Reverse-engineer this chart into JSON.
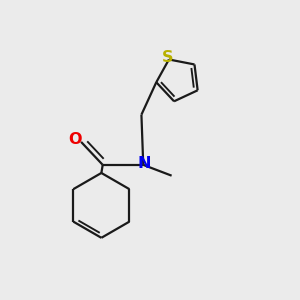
{
  "bg_color": "#ebebeb",
  "bond_color": "#1a1a1a",
  "oxygen_color": "#ee0000",
  "nitrogen_color": "#0000ee",
  "sulfur_color": "#b8b000",
  "lw": 1.6,
  "fs": 11.5,
  "xlim": [
    -0.05,
    1.05
  ],
  "ylim": [
    -0.05,
    1.05
  ]
}
